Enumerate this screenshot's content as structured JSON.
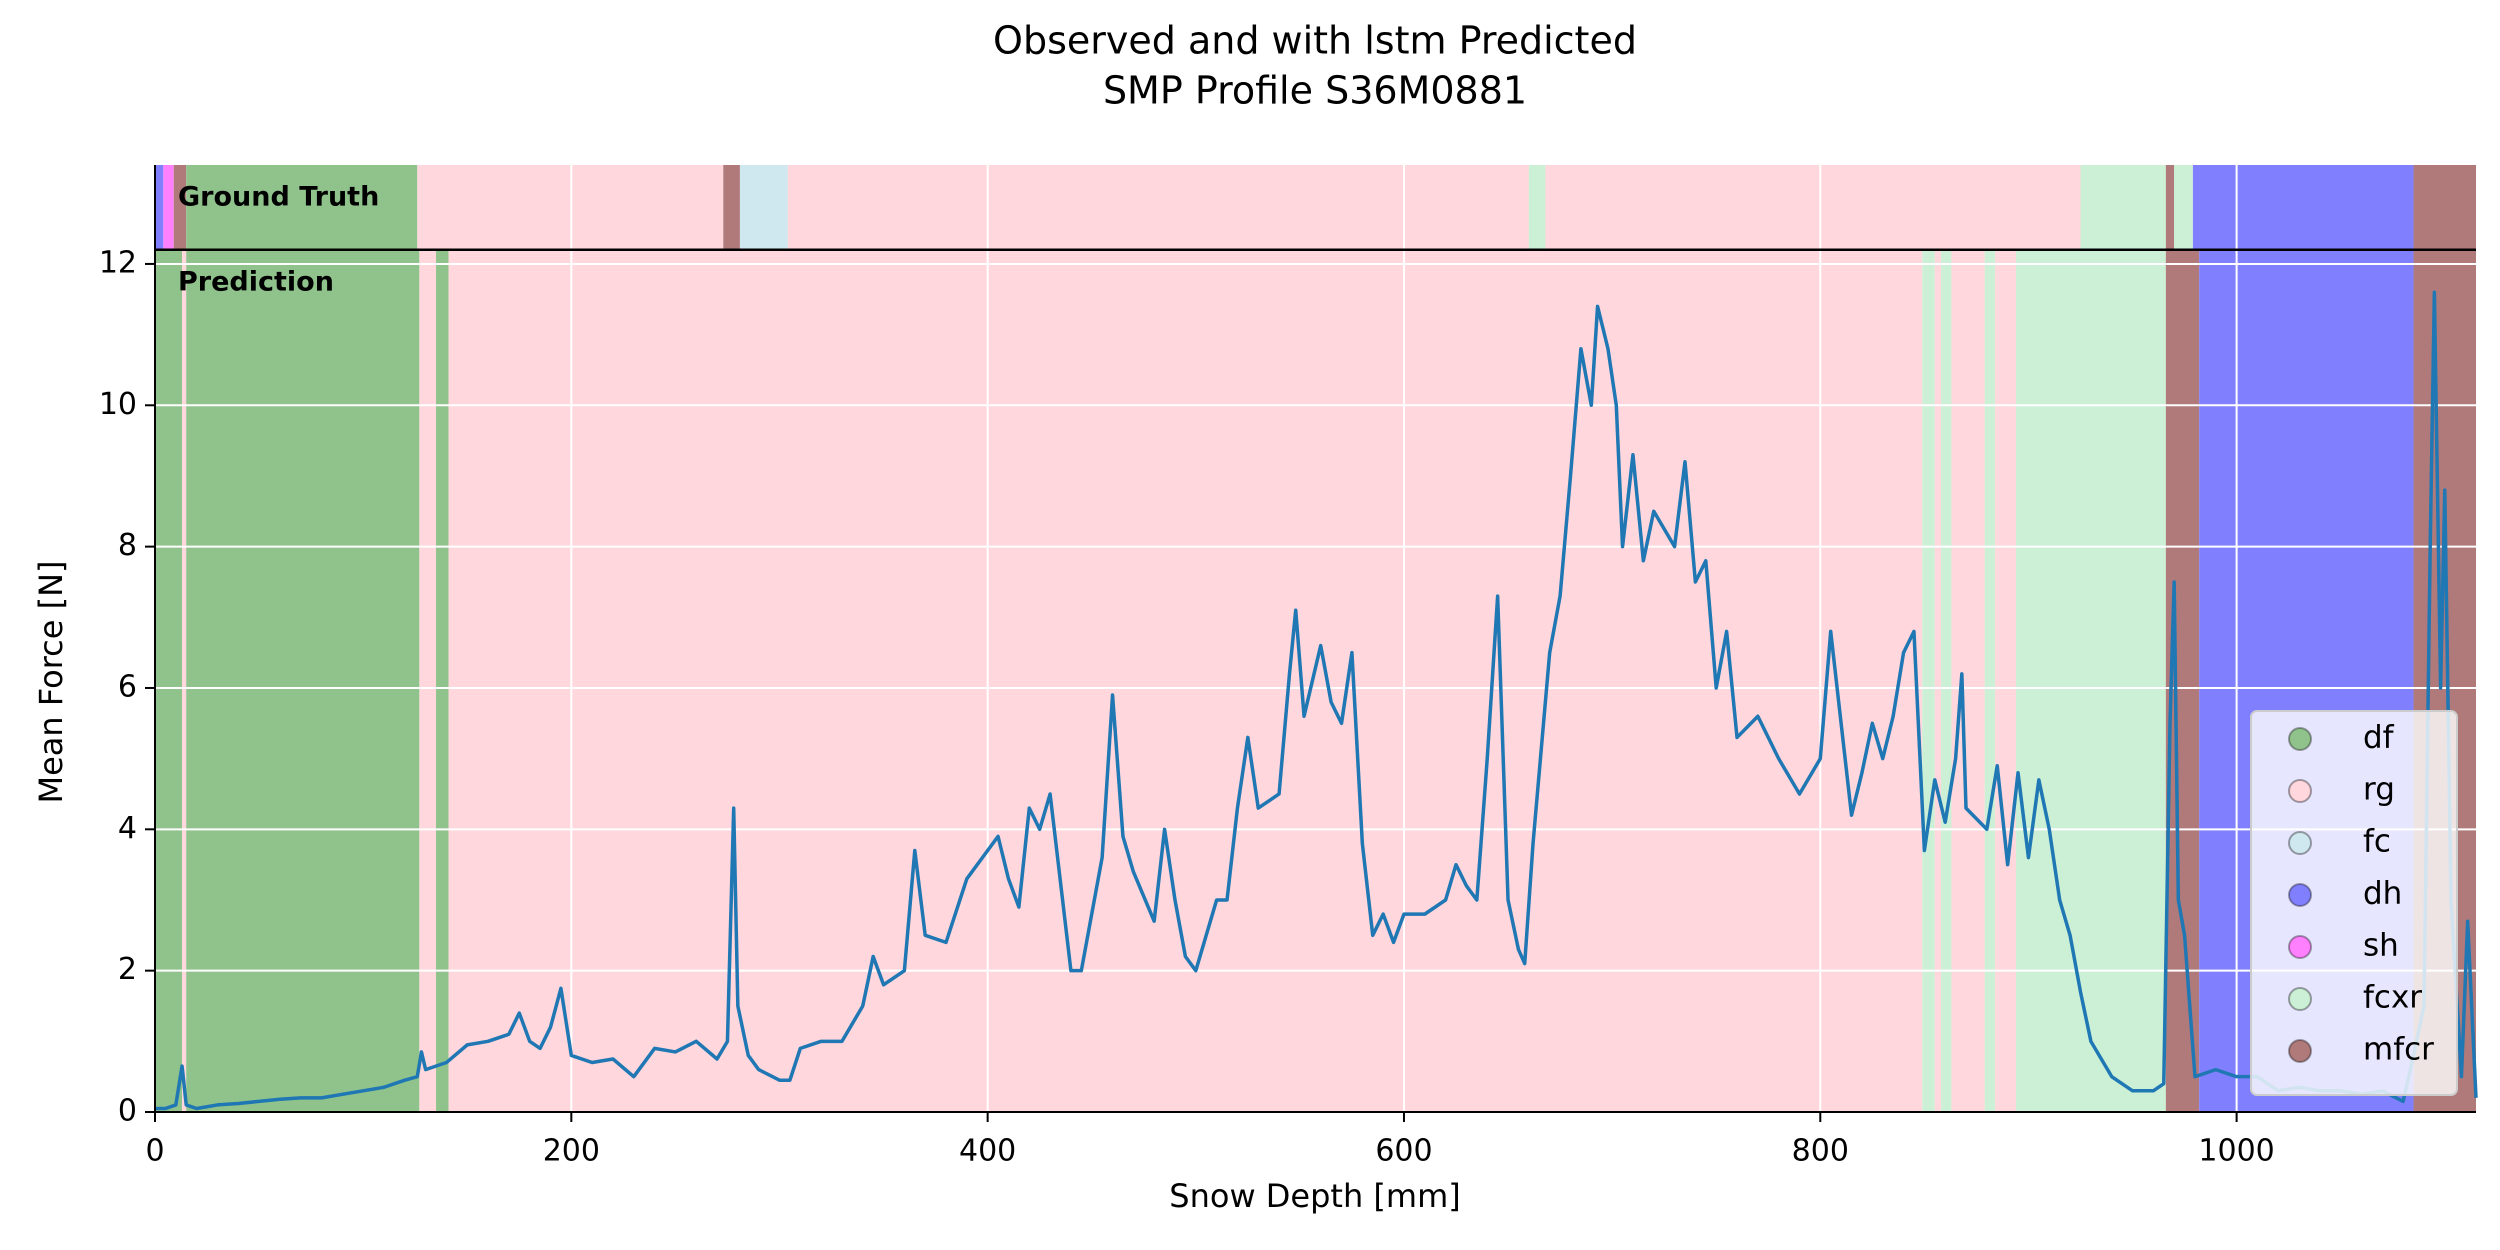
{
  "chart_data": {
    "type": "line",
    "title": [
      "Observed and with lstm Predicted",
      "SMP Profile S36M0881"
    ],
    "xlabel": "Snow Depth [mm]",
    "ylabel": "Mean Force [N]",
    "xlim": [
      0,
      1115
    ],
    "ylim": [
      0,
      13.4
    ],
    "xticks": [
      0,
      200,
      400,
      600,
      800,
      1000
    ],
    "yticks": [
      0,
      2,
      4,
      6,
      8,
      10,
      12
    ],
    "grid": true,
    "legend": "lower right",
    "classes": [
      {
        "name": "df",
        "color": "#90c38b"
      },
      {
        "name": "rg",
        "color": "#ffd7dc"
      },
      {
        "name": "fc",
        "color": "#cfe7ee"
      },
      {
        "name": "dh",
        "color": "#8080ff"
      },
      {
        "name": "sh",
        "color": "#ff80ff"
      },
      {
        "name": "fcxr",
        "color": "#ccf0d6"
      },
      {
        "name": "mfcr",
        "color": "#b07a7a"
      }
    ],
    "bands": [
      {
        "name": "Prediction",
        "range": [
          0,
          12.2
        ],
        "segments": [
          {
            "class": "df",
            "start": 0,
            "end": 13
          },
          {
            "class": "rg",
            "start": 13,
            "end": 15
          },
          {
            "class": "df",
            "start": 15,
            "end": 127
          },
          {
            "class": "rg",
            "start": 127,
            "end": 135
          },
          {
            "class": "df",
            "start": 135,
            "end": 141
          },
          {
            "class": "rg",
            "start": 141,
            "end": 849
          },
          {
            "class": "fcxr",
            "start": 849,
            "end": 855
          },
          {
            "class": "rg",
            "start": 855,
            "end": 858
          },
          {
            "class": "fcxr",
            "start": 858,
            "end": 863
          },
          {
            "class": "rg",
            "start": 863,
            "end": 879
          },
          {
            "class": "fcxr",
            "start": 879,
            "end": 884
          },
          {
            "class": "rg",
            "start": 884,
            "end": 894
          },
          {
            "class": "fcxr",
            "start": 894,
            "end": 966
          },
          {
            "class": "mfcr",
            "start": 966,
            "end": 982
          },
          {
            "class": "dh",
            "start": 982,
            "end": 1085
          },
          {
            "class": "mfcr",
            "start": 1085,
            "end": 1115
          }
        ]
      },
      {
        "name": "Ground Truth",
        "range": [
          12.2,
          13.4
        ],
        "segments": [
          {
            "class": "dh",
            "start": 0,
            "end": 4
          },
          {
            "class": "sh",
            "start": 4,
            "end": 9
          },
          {
            "class": "mfcr",
            "start": 9,
            "end": 15
          },
          {
            "class": "df",
            "start": 15,
            "end": 126
          },
          {
            "class": "rg",
            "start": 126,
            "end": 273
          },
          {
            "class": "mfcr",
            "start": 273,
            "end": 281
          },
          {
            "class": "fc",
            "start": 281,
            "end": 304
          },
          {
            "class": "rg",
            "start": 304,
            "end": 660
          },
          {
            "class": "fcxr",
            "start": 660,
            "end": 668
          },
          {
            "class": "rg",
            "start": 668,
            "end": 925
          },
          {
            "class": "fcxr",
            "start": 925,
            "end": 966
          },
          {
            "class": "mfcr",
            "start": 966,
            "end": 970
          },
          {
            "class": "fcxr",
            "start": 970,
            "end": 979
          },
          {
            "class": "dh",
            "start": 979,
            "end": 1085
          },
          {
            "class": "mfcr",
            "start": 1085,
            "end": 1115
          }
        ]
      }
    ],
    "x": [
      0,
      5,
      10,
      13,
      15,
      20,
      30,
      40,
      50,
      60,
      70,
      80,
      90,
      100,
      110,
      120,
      126,
      128,
      130,
      140,
      150,
      160,
      170,
      175,
      180,
      185,
      190,
      195,
      200,
      210,
      220,
      230,
      240,
      250,
      260,
      270,
      275,
      278,
      280,
      285,
      290,
      300,
      305,
      310,
      320,
      330,
      340,
      345,
      350,
      360,
      365,
      370,
      380,
      390,
      400,
      405,
      410,
      415,
      420,
      425,
      430,
      440,
      445,
      450,
      455,
      460,
      465,
      470,
      480,
      485,
      490,
      495,
      500,
      510,
      515,
      520,
      525,
      530,
      540,
      545,
      548,
      552,
      560,
      565,
      570,
      575,
      580,
      585,
      590,
      595,
      600,
      610,
      620,
      625,
      630,
      635,
      640,
      645,
      650,
      655,
      658,
      662,
      670,
      675,
      680,
      685,
      690,
      693,
      698,
      702,
      705,
      710,
      715,
      720,
      730,
      735,
      740,
      745,
      750,
      755,
      760,
      770,
      780,
      790,
      800,
      805,
      810,
      815,
      820,
      825,
      830,
      835,
      840,
      845,
      850,
      855,
      860,
      865,
      868,
      870,
      880,
      885,
      890,
      895,
      900,
      905,
      910,
      915,
      920,
      925,
      930,
      940,
      950,
      960,
      965,
      968,
      970,
      972,
      975,
      980,
      990,
      1000,
      1010,
      1020,
      1030,
      1040,
      1050,
      1060,
      1070,
      1080,
      1085,
      1090,
      1093,
      1095,
      1098,
      1100,
      1103,
      1108,
      1111,
      1115
    ],
    "series": [
      {
        "color": "#1f77b4",
        "values": [
          0.05,
          0.05,
          0.1,
          0.65,
          0.1,
          0.05,
          0.1,
          0.12,
          0.15,
          0.18,
          0.2,
          0.2,
          0.25,
          0.3,
          0.35,
          0.45,
          0.5,
          0.85,
          0.6,
          0.7,
          0.95,
          1.0,
          1.1,
          1.4,
          1.0,
          0.9,
          1.2,
          1.75,
          0.8,
          0.7,
          0.75,
          0.5,
          0.9,
          0.85,
          1.0,
          0.75,
          1.0,
          4.3,
          1.5,
          0.8,
          0.6,
          0.45,
          0.45,
          0.9,
          1.0,
          1.0,
          1.5,
          2.2,
          1.8,
          2.0,
          3.7,
          2.5,
          2.4,
          3.3,
          3.7,
          3.9,
          3.3,
          2.9,
          4.3,
          4.0,
          4.5,
          2.0,
          2.0,
          2.8,
          3.6,
          5.9,
          3.9,
          3.4,
          2.7,
          4.0,
          3.0,
          2.2,
          2.0,
          3.0,
          3.0,
          4.3,
          5.3,
          4.3,
          4.5,
          6.2,
          7.1,
          5.6,
          6.6,
          5.8,
          5.5,
          6.5,
          3.8,
          2.5,
          2.8,
          2.4,
          2.8,
          2.8,
          3.0,
          3.5,
          3.2,
          3.0,
          5.0,
          7.3,
          3.0,
          2.3,
          2.1,
          3.8,
          6.5,
          7.3,
          9.0,
          10.8,
          10.0,
          11.4,
          10.8,
          10.0,
          8.0,
          9.3,
          7.8,
          8.5,
          8.0,
          9.2,
          7.5,
          7.8,
          6.0,
          6.8,
          5.3,
          5.6,
          5.0,
          4.5,
          5.0,
          6.8,
          5.5,
          4.2,
          4.8,
          5.5,
          5.0,
          5.6,
          6.5,
          6.8,
          3.7,
          4.7,
          4.1,
          5.0,
          6.2,
          4.3,
          4.0,
          4.9,
          3.5,
          4.8,
          3.6,
          4.7,
          4.0,
          3.0,
          2.5,
          1.7,
          1.0,
          0.5,
          0.3,
          0.3,
          0.4,
          5.5,
          7.5,
          3.0,
          2.5,
          0.5,
          0.6,
          0.5,
          0.5,
          0.3,
          0.35,
          0.3,
          0.3,
          0.25,
          0.3,
          0.15,
          0.8,
          1.5,
          8.0,
          11.6,
          6.0,
          8.8,
          3.0,
          0.5,
          2.7,
          0.2
        ]
      }
    ]
  }
}
